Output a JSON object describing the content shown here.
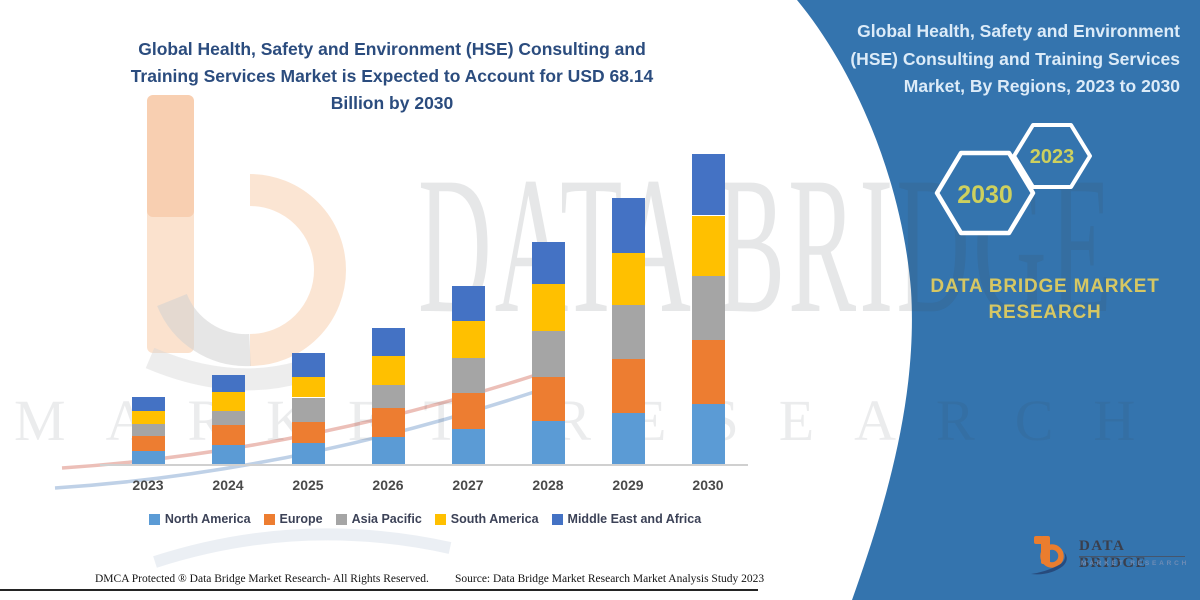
{
  "chart_data": {
    "type": "bar",
    "stacked": true,
    "title": "Global Health, Safety and Environment (HSE) Consulting and Training Services Market is Expected to Account for USD 68.14 Billion by 2030",
    "unit": "USD Billion",
    "categories": [
      "2023",
      "2024",
      "2025",
      "2026",
      "2027",
      "2028",
      "2029",
      "2030"
    ],
    "series": [
      {
        "name": "North America",
        "color": "#5B9BD5",
        "values": [
          2.9,
          4.2,
          4.6,
          5.9,
          7.7,
          9.5,
          11.2,
          13.2
        ]
      },
      {
        "name": "Europe",
        "color": "#ED7D31",
        "values": [
          3.3,
          4.4,
          4.6,
          6.4,
          7.9,
          9.7,
          11.9,
          14.1
        ]
      },
      {
        "name": "Asia Pacific",
        "color": "#A5A5A5",
        "values": [
          2.6,
          3.1,
          5.4,
          5.0,
          7.7,
          10.1,
          11.9,
          14.1
        ]
      },
      {
        "name": "South America",
        "color": "#FFC000",
        "values": [
          2.9,
          4.1,
          4.6,
          6.4,
          8.1,
          10.3,
          11.4,
          13.2
        ]
      },
      {
        "name": "Middle East and Africa",
        "color": "#4472C4",
        "values": [
          3.1,
          3.7,
          5.1,
          6.2,
          7.7,
          9.2,
          12.1,
          13.5
        ]
      }
    ],
    "totals_estimated": [
      14.8,
      19.5,
      24.3,
      29.9,
      39.1,
      48.8,
      58.5,
      68.1
    ],
    "ylim": [
      0,
      72
    ],
    "grid": false,
    "legend_position": "bottom",
    "xlabel": "",
    "ylabel": ""
  },
  "footer": {
    "dmca": "DMCA Protected ® Data Bridge Market Research-  All Rights Reserved.",
    "source": "Source: Data Bridge Market Research  Market Analysis Study 2023"
  },
  "right_panel": {
    "title": "Global Health, Safety and Environment (HSE) Consulting and Training Services Market, By Regions, 2023 to 2030",
    "hexagon_large_label": "2030",
    "hexagon_small_label": "2023",
    "brand_text": "DATA BRIDGE MARKET RESEARCH",
    "logo_name": "DATA BRIDGE",
    "logo_tagline": "MARKET RESEARCH"
  },
  "watermarks": {
    "brand": "DATA BRIDGE",
    "sub": "MARKET RESEARCH"
  },
  "colors": {
    "panel_blue": "#3474ae",
    "title_blue": "#2b4c7e",
    "panel_title_text": "#dcebf8",
    "brand_yellow": "#d6c763",
    "hex_label_yellow": "#cdd05e",
    "axis_label": "#4a4a4a",
    "legend_text": "#3c4257",
    "baseline_gray": "#d0d0d0",
    "logo_orange": "#ea7d2e",
    "logo_navy": "#274b7d"
  }
}
